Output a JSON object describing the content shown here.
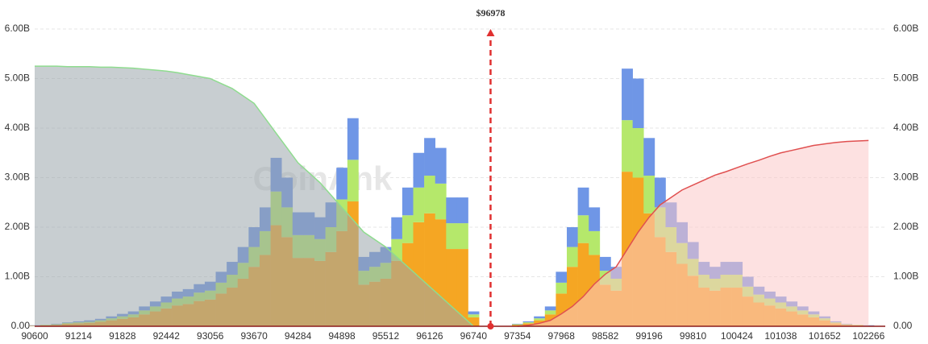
{
  "chart_data": {
    "type": "stacked-bar-cumulative",
    "annotation": {
      "label": "$96978",
      "x": 96978,
      "color": "#e03030"
    },
    "watermark": "CoinAnk",
    "xlim": [
      90600,
      102500
    ],
    "xticks": [
      90600,
      91214,
      91828,
      92442,
      93056,
      93670,
      94284,
      94898,
      95512,
      96126,
      96740,
      97354,
      97968,
      98582,
      99196,
      99810,
      100424,
      101038,
      101652,
      102266
    ],
    "ylim": [
      0,
      6
    ],
    "yticks": [
      {
        "value": 0,
        "label": "0.00"
      },
      {
        "value": 1,
        "label": "1.00B"
      },
      {
        "value": 2,
        "label": "2.00B"
      },
      {
        "value": 3,
        "label": "3.00B"
      },
      {
        "value": 4,
        "label": "4.00B"
      },
      {
        "value": 5,
        "label": "5.00B"
      },
      {
        "value": 6,
        "label": "6.00B"
      }
    ],
    "y2lim": [
      0,
      6
    ],
    "y2ticks": [
      {
        "value": 0,
        "label": "0.00"
      },
      {
        "value": 1,
        "label": "1.00B"
      },
      {
        "value": 2,
        "label": "2.00B"
      },
      {
        "value": 3,
        "label": "3.00B"
      },
      {
        "value": 4,
        "label": "4.00B"
      },
      {
        "value": 5,
        "label": "5.00B"
      },
      {
        "value": 6,
        "label": "6.00B"
      }
    ],
    "grid": true,
    "x": [
      90600,
      90753.5,
      90907,
      91060.5,
      91214,
      91367.5,
      91521,
      91674.5,
      91828,
      91981.5,
      92135,
      92288.5,
      92442,
      92595.5,
      92749,
      92902.5,
      93056,
      93209.5,
      93363,
      93516.5,
      93670,
      93823.5,
      93977,
      94130.5,
      94284,
      94437.5,
      94591,
      94744.5,
      94898,
      95051.5,
      95205,
      95358.5,
      95512,
      95665.5,
      95819,
      95972.5,
      96126,
      96279.5,
      96433,
      96586.5,
      96740,
      96893.5,
      97047,
      97200.5,
      97354,
      97507.5,
      97661,
      97814.5,
      97968,
      98121.5,
      98275,
      98428.5,
      98582,
      98735.5,
      98889,
      99042.5,
      99196,
      99349.5,
      99503,
      99656.5,
      99810,
      99963.5,
      100117,
      100270.5,
      100424,
      100577.5,
      100731,
      100884.5,
      101038,
      101191.5,
      101345,
      101498.5,
      101652,
      101805.5,
      101959,
      102112.5,
      102266
    ],
    "series": [
      {
        "color": "#f5a623",
        "values": [
          0.01,
          0.02,
          0.03,
          0.05,
          0.06,
          0.07,
          0.09,
          0.12,
          0.15,
          0.18,
          0.24,
          0.3,
          0.36,
          0.42,
          0.45,
          0.51,
          0.54,
          0.66,
          0.78,
          0.96,
          1.2,
          1.44,
          2.04,
          1.8,
          1.38,
          1.38,
          1.32,
          1.5,
          1.92,
          2.52,
          0.84,
          0.9,
          0.96,
          1.32,
          1.68,
          2.1,
          2.28,
          2.16,
          1.56,
          1.56,
          0.18,
          0,
          0,
          0,
          0.03,
          0.06,
          0.12,
          0.24,
          0.66,
          1.2,
          1.68,
          1.44,
          0.84,
          0.72,
          3.12,
          3.0,
          2.28,
          1.8,
          1.5,
          1.26,
          1.02,
          0.78,
          0.72,
          0.78,
          0.78,
          0.6,
          0.48,
          0.42,
          0.36,
          0.3,
          0.24,
          0.18,
          0.12,
          0.06,
          0.03,
          0.02,
          0.01
        ]
      },
      {
        "color": "#b5e86b",
        "values": [
          0,
          0.01,
          0.01,
          0.02,
          0.02,
          0.02,
          0.03,
          0.04,
          0.05,
          0.06,
          0.08,
          0.1,
          0.12,
          0.14,
          0.15,
          0.17,
          0.18,
          0.22,
          0.26,
          0.32,
          0.4,
          0.48,
          0.68,
          0.6,
          0.46,
          0.46,
          0.44,
          0.5,
          0.64,
          0.84,
          0.28,
          0.3,
          0.32,
          0.44,
          0.56,
          0.7,
          0.76,
          0.72,
          0.52,
          0.52,
          0.06,
          0,
          0,
          0,
          0.01,
          0.02,
          0.04,
          0.08,
          0.22,
          0.4,
          0.56,
          0.48,
          0.28,
          0.24,
          1.04,
          1.0,
          0.76,
          0.6,
          0.5,
          0.42,
          0.34,
          0.26,
          0.24,
          0.26,
          0.26,
          0.2,
          0.16,
          0.14,
          0.12,
          0.1,
          0.08,
          0.06,
          0.04,
          0.02,
          0.01,
          0.01,
          0
        ]
      },
      {
        "color": "#6f96e6",
        "values": [
          0.01,
          0,
          0.01,
          0.01,
          0.02,
          0.03,
          0.03,
          0.04,
          0.05,
          0.06,
          0.08,
          0.1,
          0.12,
          0.14,
          0.15,
          0.17,
          0.18,
          0.22,
          0.26,
          0.32,
          0.4,
          0.48,
          0.68,
          0.6,
          0.46,
          0.46,
          0.44,
          0.5,
          0.64,
          0.84,
          0.28,
          0.3,
          0.32,
          0.44,
          0.56,
          0.7,
          0.76,
          0.72,
          0.52,
          0.52,
          0.06,
          0,
          0,
          0,
          0.01,
          0.02,
          0.04,
          0.08,
          0.22,
          0.4,
          0.56,
          0.48,
          0.28,
          0.24,
          1.04,
          1.0,
          0.76,
          0.6,
          0.5,
          0.42,
          0.34,
          0.26,
          0.24,
          0.26,
          0.26,
          0.2,
          0.16,
          0.14,
          0.12,
          0.1,
          0.08,
          0.06,
          0.04,
          0.02,
          0.01,
          0,
          0.01
        ]
      },
      {
        "color": "#8fdc8f",
        "fill": "#9aa6ab",
        "axis": "y2",
        "cumulative": true,
        "values": [
          5.25,
          5.25,
          5.25,
          5.24,
          5.24,
          5.24,
          5.23,
          5.23,
          5.22,
          5.21,
          5.19,
          5.17,
          5.15,
          5.12,
          5.08,
          5.04,
          5.0,
          4.9,
          4.8,
          4.65,
          4.5,
          4.2,
          3.9,
          3.6,
          3.3,
          3.1,
          2.9,
          2.65,
          2.4,
          2.15,
          1.9,
          1.75,
          1.6,
          1.4,
          1.2,
          1.0,
          0.8,
          0.6,
          0.4,
          0.2,
          0,
          null,
          null,
          null,
          null,
          null,
          null,
          null,
          null,
          null,
          null,
          null,
          null,
          null,
          null,
          null,
          null,
          null,
          null,
          null,
          null,
          null,
          null,
          null,
          null,
          null,
          null,
          null,
          null,
          null,
          null,
          null,
          null,
          null,
          null,
          null,
          null
        ]
      },
      {
        "color": "#e05050",
        "fill": "#fbc9c9",
        "axis": "y2",
        "cumulative": true,
        "values": [
          null,
          null,
          null,
          null,
          null,
          null,
          null,
          null,
          null,
          null,
          null,
          null,
          null,
          null,
          null,
          null,
          null,
          null,
          null,
          null,
          null,
          null,
          null,
          null,
          null,
          null,
          null,
          null,
          null,
          null,
          null,
          null,
          null,
          null,
          null,
          null,
          null,
          null,
          null,
          null,
          null,
          null,
          null,
          null,
          0,
          0.02,
          0.06,
          0.12,
          0.25,
          0.4,
          0.6,
          0.85,
          1.05,
          1.2,
          1.55,
          1.9,
          2.2,
          2.45,
          2.6,
          2.75,
          2.85,
          2.95,
          3.05,
          3.12,
          3.2,
          3.28,
          3.35,
          3.43,
          3.5,
          3.55,
          3.6,
          3.65,
          3.68,
          3.71,
          3.73,
          3.74,
          3.75
        ]
      }
    ]
  }
}
